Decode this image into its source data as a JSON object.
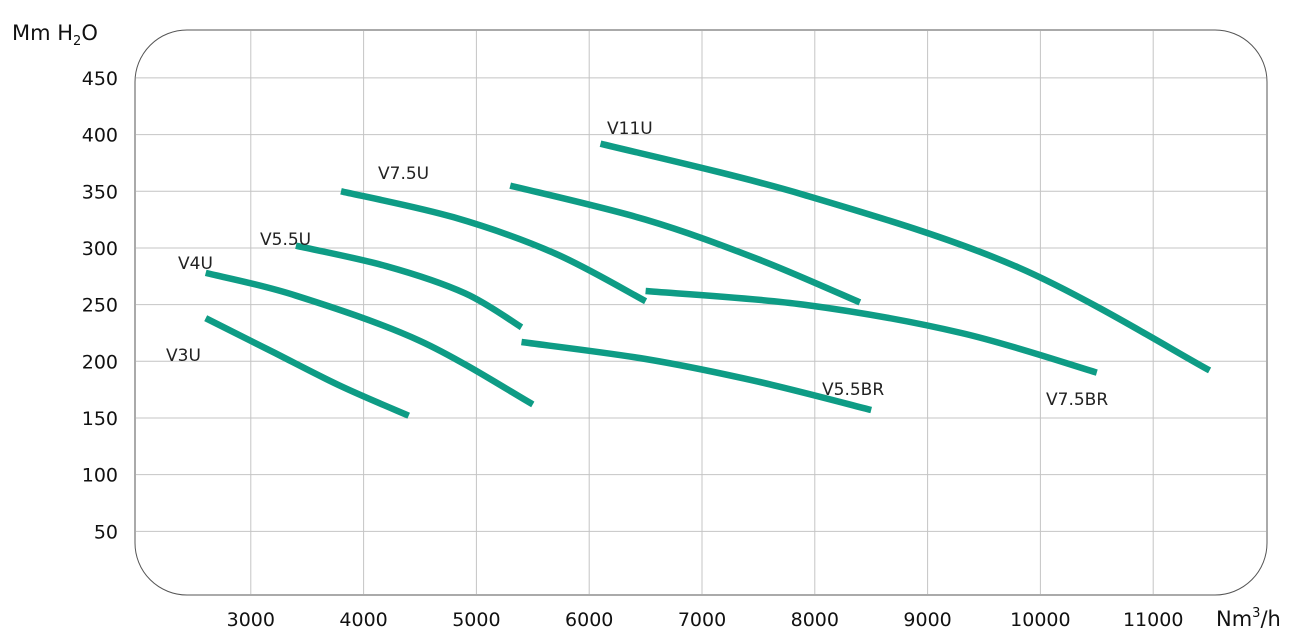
{
  "chart_data": {
    "type": "line",
    "title": "",
    "ylabel": {
      "base": "Mm H",
      "sub": "2",
      "tail": "O"
    },
    "xlabel": {
      "base": "Nm",
      "sup": "3",
      "tail": "/h"
    },
    "xlim": [
      2000,
      12000
    ],
    "ylim": [
      0,
      475
    ],
    "x_ticks": [
      "3000",
      "4000",
      "5000",
      "6000",
      "7000",
      "8000",
      "9000",
      "10000",
      "11000"
    ],
    "y_ticks": [
      "450",
      "400",
      "350",
      "300",
      "250",
      "200",
      "150",
      "100",
      "50"
    ],
    "grid": true,
    "line_color": "#0e9c85",
    "series": [
      {
        "name": "V3U",
        "points": [
          [
            2600,
            238
          ],
          [
            3200,
            208
          ],
          [
            3800,
            178
          ],
          [
            4400,
            152
          ]
        ]
      },
      {
        "name": "V4U",
        "points": [
          [
            2600,
            278
          ],
          [
            3400,
            258
          ],
          [
            4500,
            218
          ],
          [
            5500,
            162
          ]
        ]
      },
      {
        "name": "V5.5U",
        "points": [
          [
            3400,
            302
          ],
          [
            4200,
            284
          ],
          [
            4900,
            260
          ],
          [
            5400,
            230
          ]
        ]
      },
      {
        "name": "V5.5BR",
        "points": [
          [
            5400,
            217
          ],
          [
            6500,
            202
          ],
          [
            7500,
            182
          ],
          [
            8500,
            157
          ]
        ]
      },
      {
        "name": "V7.5U",
        "points": [
          [
            3800,
            350
          ],
          [
            4800,
            327
          ],
          [
            5700,
            295
          ],
          [
            6500,
            253
          ]
        ]
      },
      {
        "name": "",
        "points": [
          [
            5300,
            355
          ],
          [
            6500,
            325
          ],
          [
            7500,
            290
          ],
          [
            8400,
            252
          ]
        ]
      },
      {
        "name": "V7.5BR",
        "points": [
          [
            6500,
            262
          ],
          [
            7900,
            250
          ],
          [
            9300,
            225
          ],
          [
            10500,
            190
          ]
        ]
      },
      {
        "name": "V11U",
        "points": [
          [
            6100,
            392
          ],
          [
            7900,
            347
          ],
          [
            9800,
            283
          ],
          [
            11500,
            192
          ]
        ]
      }
    ]
  }
}
